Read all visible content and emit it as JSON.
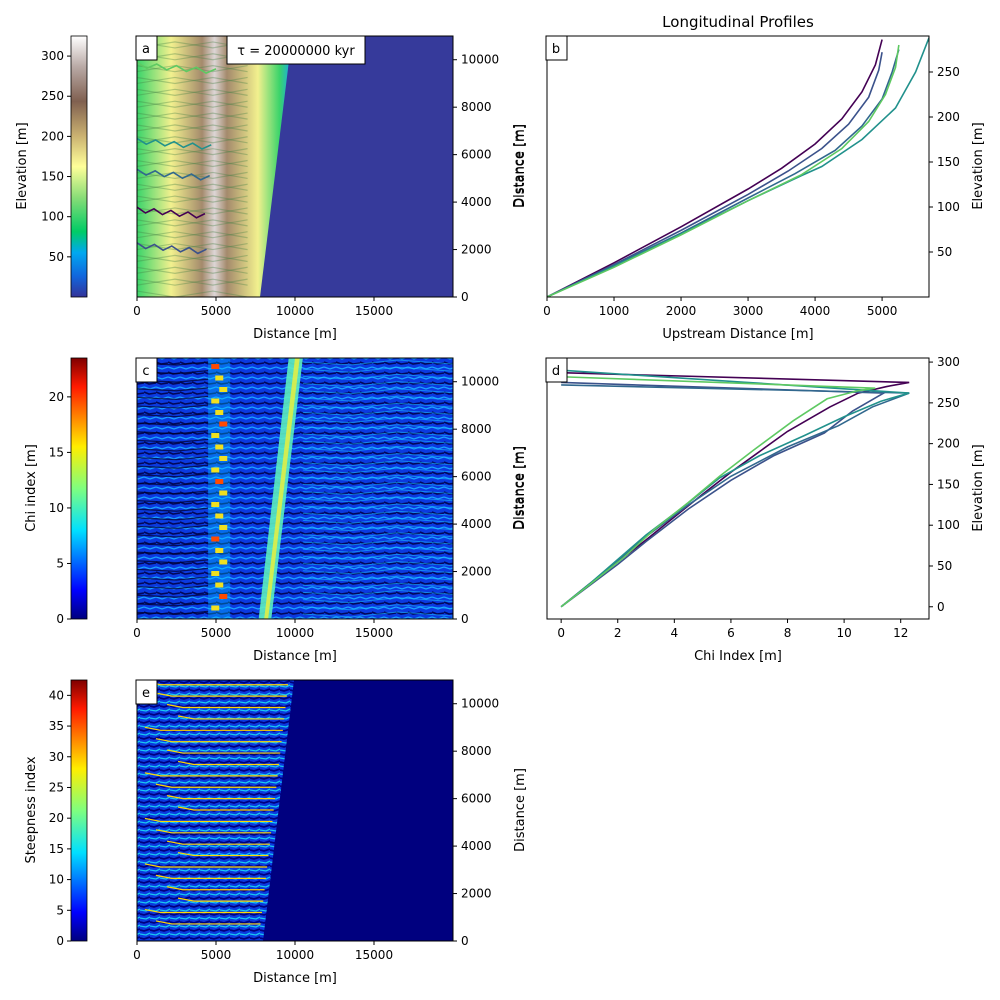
{
  "figure": {
    "panel_a_title": "",
    "panel_b_title": "Longitudinal Profiles",
    "tau_label": "τ = 20000000 kyr"
  },
  "colors": {
    "ocean_blue": "#363a9b",
    "chi_background": "#00007f",
    "steep_background": "#00007f",
    "steep_channel": "#ffd700",
    "profile_colors": [
      "#440154",
      "#3b528b",
      "#31688e",
      "#21918c",
      "#5ec962"
    ]
  },
  "chart_data": [
    {
      "panel": "a",
      "type": "heatmap",
      "panel_letter": "a",
      "xlabel": "Distance [m]",
      "ylabel": "Distance [m]",
      "xlim": [
        0,
        20000
      ],
      "ylim": [
        0,
        11000
      ],
      "xticks": [
        0,
        5000,
        10000,
        15000
      ],
      "yticks": [
        0,
        2000,
        4000,
        6000,
        8000,
        10000
      ],
      "colorbar": {
        "label": "Elevation [m]",
        "colormap": "terrain",
        "range": [
          0,
          325
        ],
        "ticks": [
          50,
          100,
          150,
          200,
          250,
          300
        ]
      },
      "ridge_x": 4800,
      "coast_x_bottom": 7800,
      "coast_x_top": 9800,
      "channels": [
        {
          "y_start": 3700,
          "x_mouth": 0,
          "x_end": 4300
        },
        {
          "y_start": 2200,
          "x_mouth": 0,
          "x_end": 4400
        },
        {
          "y_start": 5300,
          "x_mouth": 0,
          "x_end": 4600
        },
        {
          "y_start": 6600,
          "x_mouth": 0,
          "x_end": 4700
        },
        {
          "y_start": 9800,
          "x_mouth": 0,
          "x_end": 5000
        }
      ]
    },
    {
      "panel": "b",
      "type": "line",
      "panel_letter": "b",
      "title": "Longitudinal Profiles",
      "xlabel": "Upstream Distance [m]",
      "ylabel": "Elevation [m]",
      "left_label": "Distance [m]",
      "xlim": [
        0,
        5700
      ],
      "ylim": [
        0,
        290
      ],
      "xticks": [
        0,
        1000,
        2000,
        3000,
        4000,
        5000
      ],
      "yticks": [
        50,
        100,
        150,
        200,
        250
      ],
      "series": [
        {
          "x": [
            0,
            1000,
            2000,
            3000,
            3500,
            4000,
            4400,
            4700,
            4900,
            5000
          ],
          "y": [
            0,
            38,
            78,
            120,
            143,
            170,
            198,
            228,
            258,
            286
          ]
        },
        {
          "x": [
            0,
            1000,
            2000,
            3000,
            3600,
            4100,
            4500,
            4800,
            4950,
            5000
          ],
          "y": [
            0,
            36,
            74,
            114,
            140,
            165,
            192,
            222,
            252,
            272
          ]
        },
        {
          "x": [
            0,
            1000,
            2000,
            3000,
            3700,
            4300,
            4700,
            5000,
            5150,
            5250
          ],
          "y": [
            0,
            35,
            71,
            110,
            137,
            163,
            190,
            220,
            250,
            275
          ]
        },
        {
          "x": [
            0,
            1000,
            2000,
            3000,
            3800,
            4100,
            4700,
            5200,
            5500,
            5700
          ],
          "y": [
            0,
            34,
            70,
            107,
            135,
            145,
            175,
            210,
            250,
            288
          ]
        },
        {
          "x": [
            0,
            1000,
            2000,
            3000,
            3800,
            4400,
            4800,
            5050,
            5200,
            5250
          ],
          "y": [
            0,
            33,
            69,
            107,
            136,
            165,
            195,
            225,
            255,
            280
          ]
        }
      ]
    },
    {
      "panel": "c",
      "type": "heatmap",
      "panel_letter": "c",
      "xlabel": "Distance [m]",
      "ylabel": "Distance [m]",
      "xlim": [
        0,
        20000
      ],
      "ylim": [
        0,
        11000
      ],
      "xticks": [
        0,
        5000,
        10000,
        15000
      ],
      "yticks": [
        0,
        2000,
        4000,
        6000,
        8000,
        10000
      ],
      "colorbar": {
        "label": "Chi index [m]",
        "colormap": "jet",
        "range": [
          0,
          23.5
        ],
        "ticks": [
          0,
          5,
          10,
          15,
          20
        ]
      },
      "ridge_x": 5000,
      "coast_x_bottom": 8200,
      "coast_x_top": 10200
    },
    {
      "panel": "d",
      "type": "line",
      "panel_letter": "d",
      "xlabel": "Chi Index [m]",
      "ylabel": "Elevation [m]",
      "left_label": "Distance [m]",
      "xlim": [
        -0.5,
        13
      ],
      "ylim": [
        -15,
        305
      ],
      "xticks": [
        0,
        2,
        4,
        6,
        8,
        10,
        12
      ],
      "yticks": [
        0,
        50,
        100,
        150,
        200,
        250,
        300
      ],
      "series": [
        {
          "x": [
            0,
            1,
            2,
            3,
            4,
            5,
            6,
            7,
            8,
            9.5,
            10.5,
            11.5,
            12.3,
            0
          ],
          "y": [
            0,
            28,
            55,
            82,
            110,
            138,
            165,
            190,
            215,
            245,
            262,
            270,
            275,
            287
          ]
        },
        {
          "x": [
            0,
            1,
            2,
            3,
            4.5,
            6,
            7.5,
            9.3,
            10.3,
            11.2,
            11.4,
            0
          ],
          "y": [
            0,
            26,
            52,
            80,
            120,
            155,
            185,
            213,
            240,
            258,
            262,
            275
          ]
        },
        {
          "x": [
            0,
            1,
            2,
            3,
            4.5,
            6,
            8,
            9.8,
            11,
            12.3,
            0
          ],
          "y": [
            0,
            27,
            56,
            86,
            125,
            160,
            196,
            222,
            245,
            262,
            272
          ]
        },
        {
          "x": [
            0,
            1,
            2,
            3,
            4.3,
            5.6,
            7,
            8.6,
            10,
            11.3,
            12.3,
            0
          ],
          "y": [
            0,
            28,
            58,
            88,
            122,
            158,
            185,
            210,
            233,
            252,
            262,
            290
          ]
        },
        {
          "x": [
            0,
            1,
            2.2,
            3.3,
            4.5,
            5.6,
            6.8,
            8.2,
            9.4,
            10.5,
            11.1,
            0
          ],
          "y": [
            0,
            27,
            60,
            95,
            128,
            160,
            192,
            228,
            255,
            265,
            268,
            282
          ]
        }
      ]
    },
    {
      "panel": "e",
      "type": "heatmap",
      "panel_letter": "e",
      "xlabel": "Distance [m]",
      "ylabel": "Distance [m]",
      "xlim": [
        0,
        20000
      ],
      "ylim": [
        0,
        11000
      ],
      "xticks": [
        0,
        5000,
        10000,
        15000
      ],
      "yticks": [
        0,
        2000,
        4000,
        6000,
        8000,
        10000
      ],
      "colorbar": {
        "label": "Steepness index",
        "colormap": "jet",
        "range": [
          0,
          42.5
        ],
        "ticks": [
          0,
          5,
          10,
          15,
          20,
          25,
          30,
          35,
          40
        ]
      },
      "coast_x_bottom": 8000,
      "coast_x_top": 9900
    }
  ]
}
